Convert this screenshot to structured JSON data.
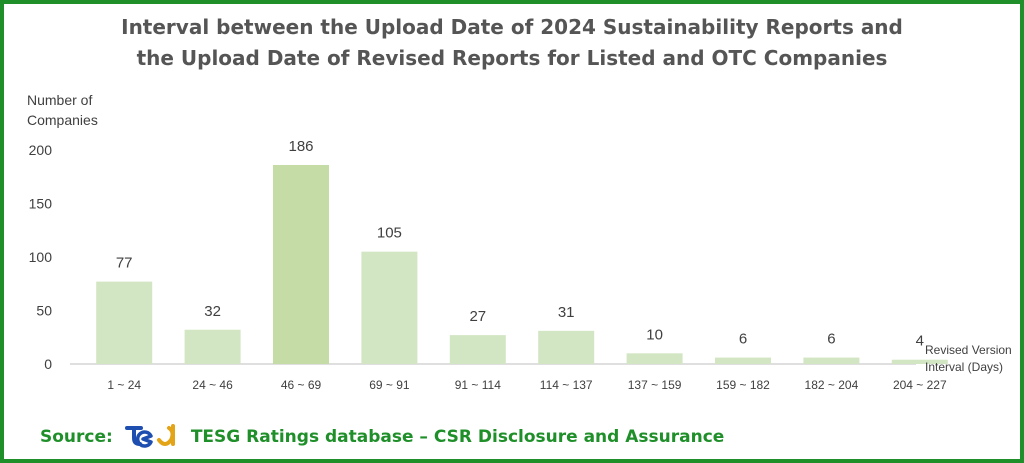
{
  "colors": {
    "border": "#1f8f2a",
    "source_text": "#1f8f2a",
    "title_text": "#555555",
    "bar_fill": "#d3e6c4",
    "bar_highlight": "#c5dca7",
    "logo_blue": "#1e4fb0",
    "logo_gold": "#e4a418"
  },
  "header": {
    "title_line1": "Interval between the Upload Date of 2024 Sustainability Reports and",
    "title_line2": "the Upload Date of Revised Reports for Listed and OTC Companies"
  },
  "footer": {
    "source_label": "Source:",
    "source_text": "TESG Ratings database – CSR Disclosure and Assurance",
    "logo_icon": "tesg-logo-icon"
  },
  "chart_data": {
    "type": "bar",
    "title": "Interval between the Upload Date of 2024 Sustainability Reports and the Upload Date of Revised Reports for Listed and OTC Companies",
    "ylabel": [
      "Number of",
      "Companies"
    ],
    "xlabel": [
      "Revised Version",
      "Interval (Days)"
    ],
    "categories": [
      "1 ~ 24",
      "24 ~ 46",
      "46 ~ 69",
      "69 ~ 91",
      "91 ~ 114",
      "114 ~ 137",
      "137 ~ 159",
      "159 ~ 182",
      "182 ~ 204",
      "204 ~ 227"
    ],
    "values": [
      77,
      32,
      186,
      105,
      27,
      31,
      10,
      6,
      6,
      4
    ],
    "yticks": [
      0,
      50,
      100,
      150,
      200
    ],
    "ylim": [
      0,
      200
    ],
    "grid": false,
    "legend": "none"
  }
}
